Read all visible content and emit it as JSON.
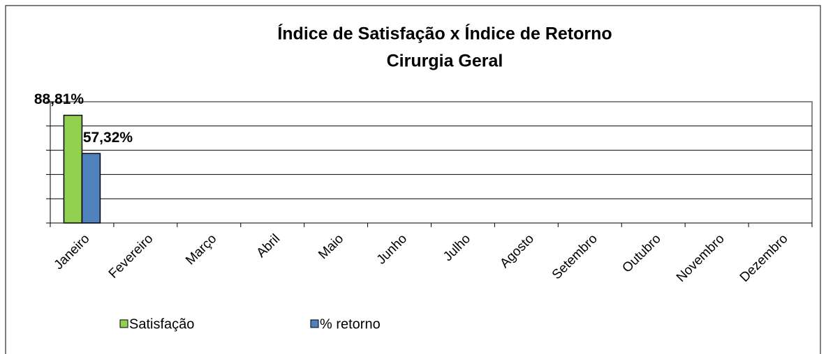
{
  "chart_data": {
    "type": "bar",
    "title": [
      "Índice de Satisfação x Índice de Retorno",
      "Cirurgia Geral"
    ],
    "categories": [
      "Janeiro",
      "Fevereiro",
      "Março",
      "Abril",
      "Maio",
      "Junho",
      "Julho",
      "Agosto",
      "Setembro",
      "Outubro",
      "Novembro",
      "Dezembro"
    ],
    "series": [
      {
        "name": "Satisfação",
        "color": "#92d050",
        "values": [
          88.81,
          null,
          null,
          null,
          null,
          null,
          null,
          null,
          null,
          null,
          null,
          null
        ],
        "value_labels": [
          "88,81%",
          null,
          null,
          null,
          null,
          null,
          null,
          null,
          null,
          null,
          null,
          null
        ]
      },
      {
        "name": "% retorno",
        "color": "#4f81bd",
        "values": [
          57.32,
          null,
          null,
          null,
          null,
          null,
          null,
          null,
          null,
          null,
          null,
          null
        ],
        "value_labels": [
          "57,32%",
          null,
          null,
          null,
          null,
          null,
          null,
          null,
          null,
          null,
          null,
          null
        ]
      }
    ],
    "ylim": [
      0,
      100
    ],
    "yticks": [
      0,
      20,
      40,
      60,
      80,
      100
    ],
    "grid": true,
    "legend": "bottom"
  }
}
